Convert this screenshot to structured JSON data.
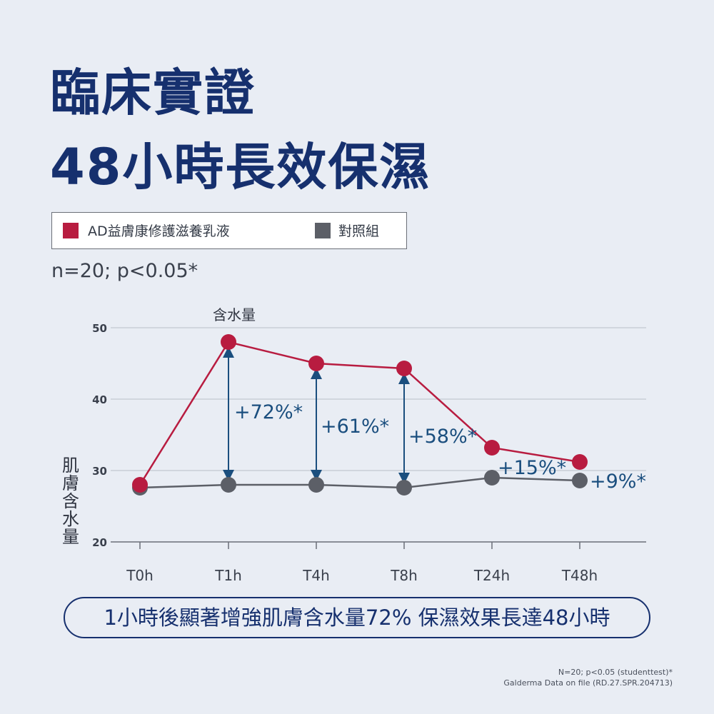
{
  "title": {
    "line1": "臨床實證",
    "line2": "48小時長效保濕"
  },
  "legend": [
    {
      "label": "AD益膚康修護滋養乳液",
      "color": "#b81c40"
    },
    {
      "label": "對照組",
      "color": "#5c5f67"
    }
  ],
  "stats_note": "n=20; p<0.05*",
  "ylabel": [
    "肌",
    "膚",
    "含",
    "水",
    "量"
  ],
  "chart_data": {
    "type": "line",
    "title": "含水量",
    "xlabel": "",
    "ylabel": "肌膚含水量",
    "categories": [
      "T0h",
      "T1h",
      "T4h",
      "T8h",
      "T24h",
      "T48h"
    ],
    "ylim": [
      20,
      50
    ],
    "yticks": [
      20,
      30,
      40,
      50
    ],
    "grid": true,
    "series": [
      {
        "name": "AD益膚康修護滋養乳液",
        "color": "#b81c40",
        "values": [
          28,
          48,
          45,
          44.3,
          33.2,
          31.2
        ]
      },
      {
        "name": "對照組",
        "color": "#5c5f67",
        "values": [
          27.6,
          28,
          28,
          27.6,
          29,
          28.6
        ]
      }
    ],
    "annotations": [
      "+72%*",
      "+61%*",
      "+58%*",
      "+15%*",
      "+9%*"
    ]
  },
  "banner": "1小時後顯著增強肌膚含水量72% 保濕效果長達48小時",
  "footnote": {
    "line1": "N=20; p<0.05 (studenttest)*",
    "line2": "Galderma Data on file (RD.27.SPR.204713)"
  }
}
